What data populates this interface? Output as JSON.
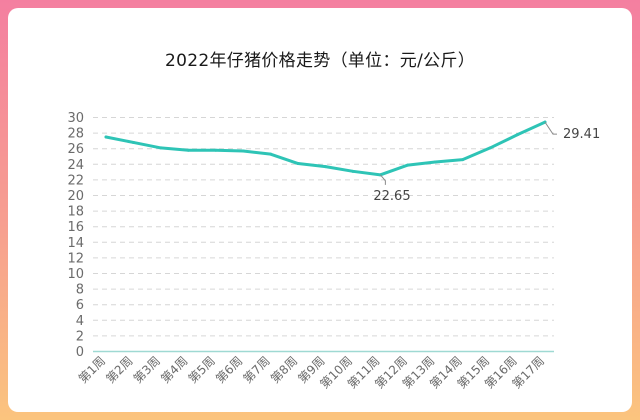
{
  "chart_data": {
    "type": "line",
    "title": "2022年仔猪价格走势（单位：元/公斤）",
    "categories": [
      "第1周",
      "第2周",
      "第3周",
      "第4周",
      "第5周",
      "第6周",
      "第7周",
      "第8周",
      "第9周",
      "第10周",
      "第11周",
      "第12周",
      "第13周",
      "第14周",
      "第15周",
      "第16周",
      "第17周"
    ],
    "series": [
      {
        "values": [
          27.5,
          26.8,
          26.1,
          25.8,
          25.8,
          25.7,
          25.3,
          24.1,
          23.7,
          23.1,
          22.65,
          23.9,
          24.3,
          24.6,
          26.1,
          27.8,
          29.41
        ]
      }
    ],
    "ylim": [
      0,
      30
    ],
    "yticks": [
      0,
      2,
      4,
      6,
      8,
      10,
      12,
      14,
      16,
      18,
      20,
      22,
      24,
      26,
      28,
      30
    ],
    "data_labels": [
      {
        "index": 10,
        "text": "22.65"
      },
      {
        "index": 16,
        "text": "29.41"
      }
    ],
    "grid": true,
    "line_color": "#2ec4b6"
  }
}
